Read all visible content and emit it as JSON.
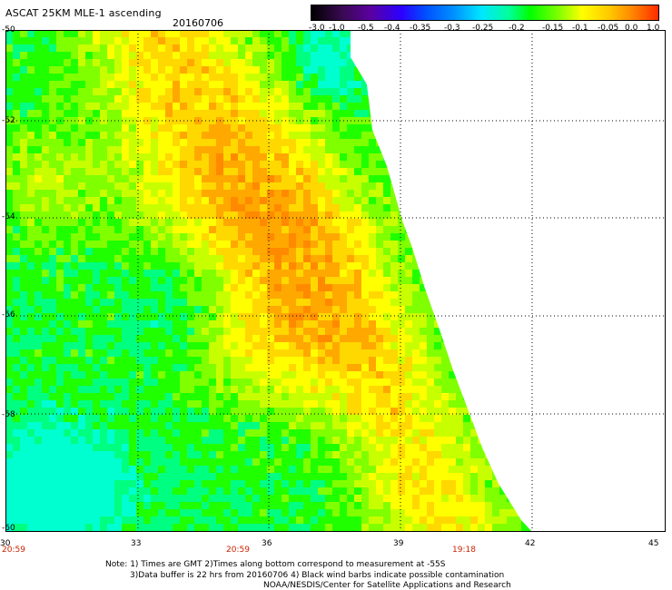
{
  "title": "ASCAT 25KM MLE-1 ascending",
  "date": "20160706",
  "colorbar": {
    "labels": [
      "-3.0",
      "-1.0",
      "-0.5",
      "-0.4",
      "-0.35",
      "-0.3",
      "-0.25",
      "-0.2",
      "-0.15",
      "-0.1",
      "-0.05",
      "0.0",
      "1.0"
    ],
    "colors": [
      "#000000",
      "#5a00a0",
      "#2a00ff",
      "#0050ff",
      "#0090ff",
      "#00e6ff",
      "#00ff9a",
      "#00ff00",
      "#7cff00",
      "#ffff00",
      "#ffc800",
      "#ff8000",
      "#ff2a00"
    ]
  },
  "map": {
    "lat_labels": [
      "-50",
      "-52",
      "-54",
      "-56",
      "-58",
      "-60"
    ],
    "lon_labels": [
      "30",
      "33",
      "36",
      "39",
      "42",
      "45"
    ],
    "time_labels": [
      "20:59",
      "20:59",
      "19:18"
    ]
  },
  "notes": {
    "line1": "Note: 1) Times are GMT 2)Times along bottom correspond to measurement at -55S",
    "line2": "3)Data buffer is 22 hrs from 20160706 4) Black wind barbs indicate possible contamination",
    "line3": "NOAA/NESDIS/Center for Satellite Applications and Research"
  }
}
